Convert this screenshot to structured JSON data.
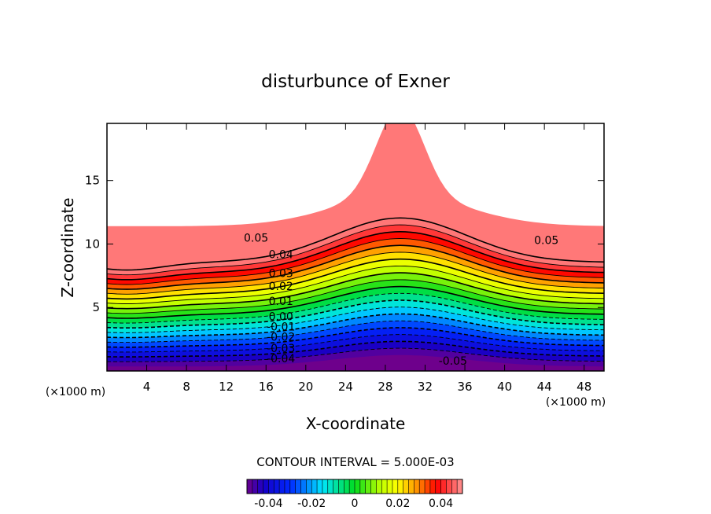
{
  "chart_data": {
    "type": "contour",
    "title": "disturbunce of Exner",
    "xlabel": "X-coordinate",
    "ylabel": "Z-coordinate",
    "x_unit_label": "(×1000 m)",
    "xlim": [
      0,
      50
    ],
    "ylim": [
      0,
      19.5
    ],
    "x_ticks": [
      4,
      8,
      12,
      16,
      20,
      24,
      28,
      32,
      36,
      40,
      44,
      48
    ],
    "y_ticks": [
      5,
      10,
      15
    ],
    "contour_interval_label": "CONTOUR INTERVAL = 5.000E-03",
    "contour_interval": 0.005,
    "levels_range": [
      -0.05,
      0.05
    ],
    "contour_labels": [
      {
        "text": "0.05",
        "x": 15,
        "z": 10.5
      },
      {
        "text": "0.04",
        "x": 17.5,
        "z": 9.2
      },
      {
        "text": "0.03",
        "x": 17.5,
        "z": 7.7
      },
      {
        "text": "0.02",
        "x": 17.5,
        "z": 6.7
      },
      {
        "text": "0.01",
        "x": 17.5,
        "z": 5.5
      },
      {
        "text": "0.00",
        "x": 17.5,
        "z": 4.3
      },
      {
        "text": "-0.01",
        "x": 17.5,
        "z": 3.5
      },
      {
        "text": "-0.02",
        "x": 17.5,
        "z": 2.7
      },
      {
        "text": "-0.03",
        "x": 17.5,
        "z": 1.8
      },
      {
        "text": "-0.04",
        "x": 17.5,
        "z": 1.0
      },
      {
        "text": "-0.05",
        "x": 34.8,
        "z": 0.8
      },
      {
        "text": "0.05",
        "x": 44.2,
        "z": 10.3
      }
    ],
    "colorbar": {
      "ticks": [
        -0.04,
        -0.02,
        0,
        0.02,
        0.04
      ],
      "tick_labels": [
        "-0.04",
        "-0.02",
        "0",
        "0.02",
        "0.04"
      ],
      "range": [
        -0.05,
        0.05
      ]
    },
    "mountain_center_x": 29.5,
    "colors": {
      "high": "#ff8080",
      "mid_high": "#ff0000",
      "mid": "#ffff00",
      "zero": "#00ff00",
      "mid_low": "#00ffff",
      "low": "#0000ff",
      "lowest": "#800080"
    }
  }
}
